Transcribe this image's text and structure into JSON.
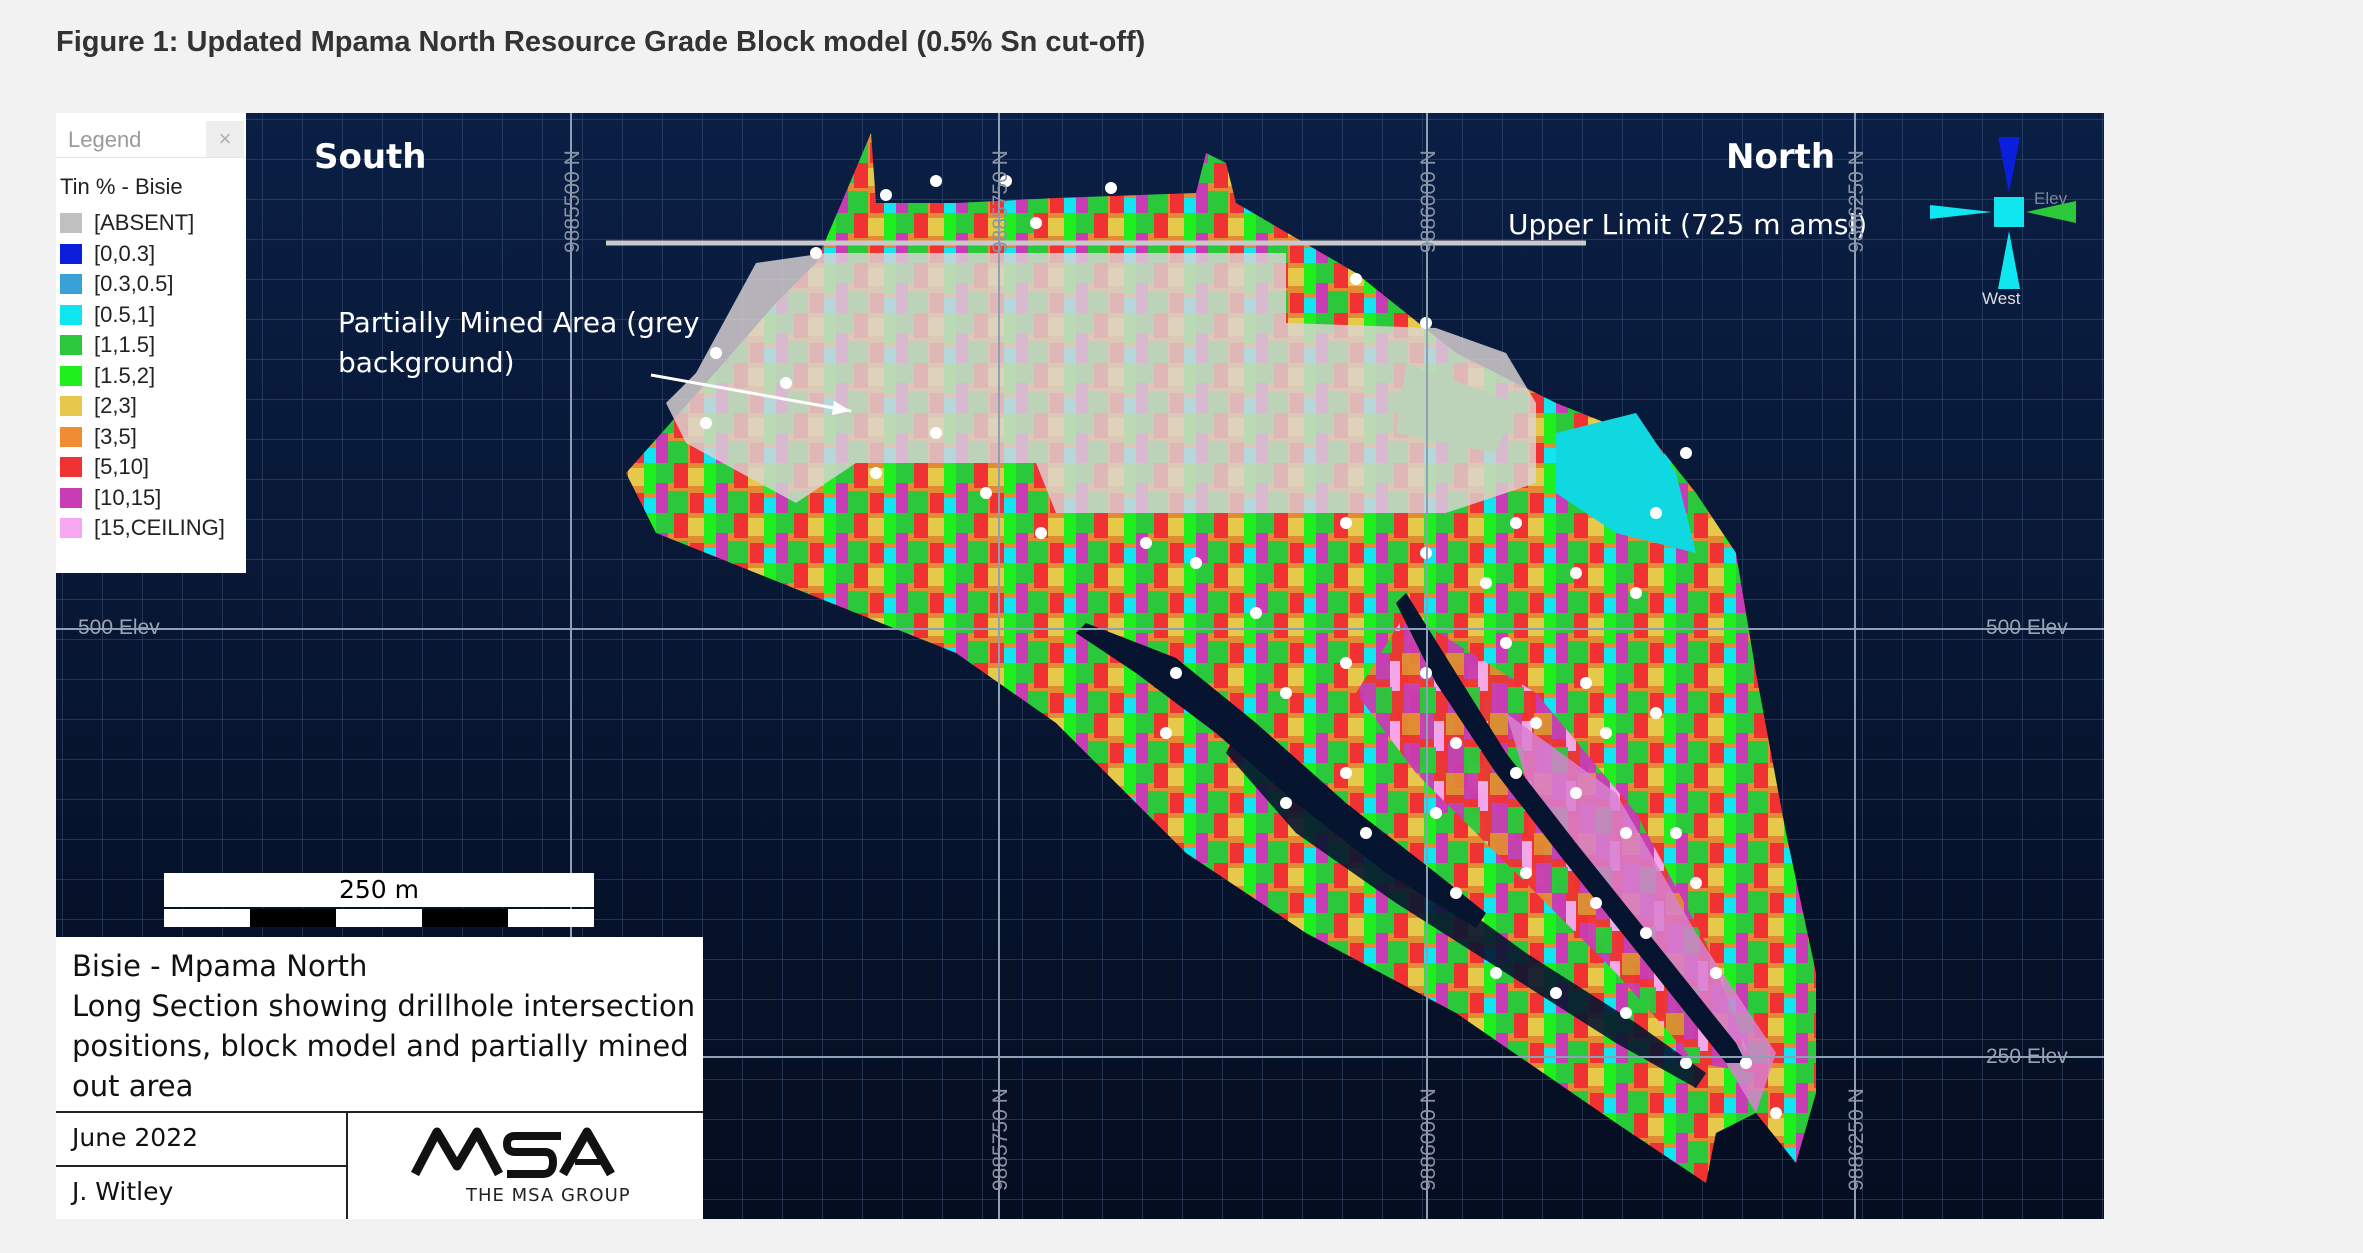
{
  "figure_title": "Figure 1: Updated Mpama North Resource Grade Block model (0.5% Sn cut-off)",
  "legend": {
    "header": "Legend",
    "close_icon": "close-icon",
    "subtitle": "Tin % - Bisie",
    "items": [
      {
        "label": "[ABSENT]",
        "color": "#c0c0c0"
      },
      {
        "label": "[0,0.3]",
        "color": "#0a1edc"
      },
      {
        "label": "[0.3,0.5]",
        "color": "#3aa0d8"
      },
      {
        "label": "[0.5,1]",
        "color": "#10e6f0"
      },
      {
        "label": "[1,1.5]",
        "color": "#2cc83c"
      },
      {
        "label": "[1.5,2]",
        "color": "#1ef01e"
      },
      {
        "label": "[2,3]",
        "color": "#e6c84a"
      },
      {
        "label": "[3,5]",
        "color": "#f08c32"
      },
      {
        "label": "[5,10]",
        "color": "#f03232"
      },
      {
        "label": "[10,15]",
        "color": "#c83cb4"
      },
      {
        "label": "[15,CEILING]",
        "color": "#f8a8f0"
      }
    ]
  },
  "section": {
    "south_label": "South",
    "north_label": "North",
    "upper_limit": "Upper Limit (725 m amsl)",
    "mined_area_line1": "Partially Mined Area (grey",
    "mined_area_line2": "background)",
    "elev_labels": {
      "left_500": "500 Elev",
      "right_500": "500 Elev",
      "right_250": "250 Elev"
    },
    "northing_top": [
      "9885500 N",
      "9885750 N",
      "9886000 N",
      "9886250 N"
    ],
    "northing_bottom": [
      "9885750 N",
      "9886000 N",
      "9886250 N"
    ],
    "compass_west": "West",
    "compass_elev": "Elev"
  },
  "scalebar": {
    "label": "250 m"
  },
  "titlebox": {
    "line1": "Bisie - Mpama North",
    "line2": "Long Section showing drillhole intersection",
    "line3": "positions, block model and partially mined",
    "line4": "out  area",
    "date": "June 2022",
    "author": "J. Witley",
    "logo_text": "MSA",
    "logo_sub": "THE MSA GROUP"
  }
}
